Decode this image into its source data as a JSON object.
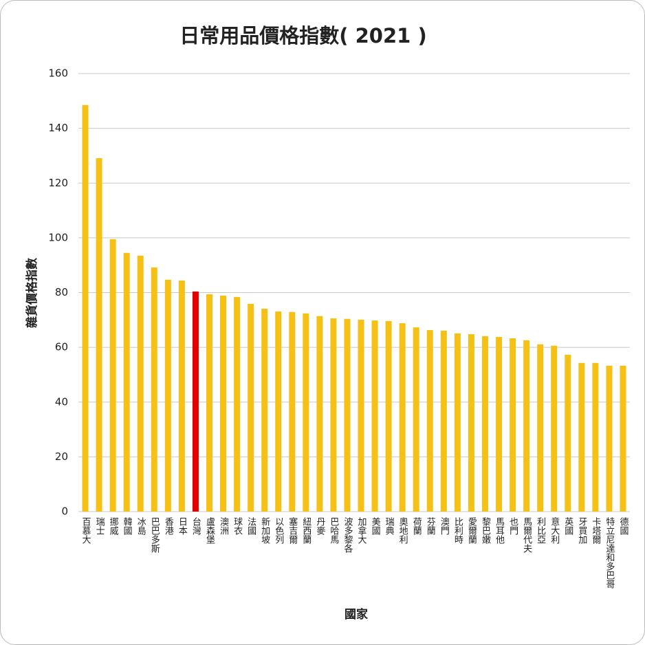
{
  "chart_data": {
    "type": "bar",
    "title": "日常用品價格指數( 2021 )",
    "x_label": "國家",
    "y_label": "雜貨價格指數",
    "categories": [
      "百慕大",
      "瑞士",
      "挪威",
      "韓國",
      "冰島",
      "巴巴多斯",
      "香港",
      "日本",
      "台灣",
      "盧森堡",
      "澳洲",
      "球衣",
      "法國",
      "新加坡",
      "以色列",
      "塞吉爾",
      "紐西蘭",
      "丹麥",
      "巴哈馬",
      "波多黎各",
      "加拿大",
      "美國",
      "瑞典",
      "奧地利",
      "荷蘭",
      "芬蘭",
      "澳門",
      "比利時",
      "愛爾蘭",
      "黎巴嫩",
      "馬耳他",
      "也門",
      "馬爾代夫",
      "利比亞",
      "意大利",
      "英國",
      "牙買加",
      "卡塔爾",
      "特立尼達和多巴哥",
      "德國"
    ],
    "values": [
      148.5,
      129.1,
      99.5,
      94.5,
      93.5,
      89.2,
      84.7,
      84.4,
      80.4,
      79.4,
      78.9,
      78.4,
      75.9,
      74.1,
      73.1,
      72.9,
      72.4,
      71.4,
      70.6,
      70.4,
      70.1,
      69.8,
      69.6,
      68.8,
      67.3,
      66.3,
      66.1,
      65.1,
      64.8,
      64.1,
      63.8,
      63.3,
      62.6,
      61.1,
      60.6,
      57.3,
      54.3,
      54.3,
      53.3,
      53.3
    ],
    "colors": [
      "#f5c116",
      "#f5c116",
      "#f5c116",
      "#f5c116",
      "#f5c116",
      "#f5c116",
      "#f5c116",
      "#f5c116",
      "#e00000",
      "#f5c116",
      "#f5c116",
      "#f5c116",
      "#f5c116",
      "#f5c116",
      "#f5c116",
      "#f5c116",
      "#f5c116",
      "#f5c116",
      "#f5c116",
      "#f5c116",
      "#f5c116",
      "#f5c116",
      "#f5c116",
      "#f5c116",
      "#f5c116",
      "#f5c116",
      "#f5c116",
      "#f5c116",
      "#f5c116",
      "#f5c116",
      "#f5c116",
      "#f5c116",
      "#f5c116",
      "#f5c116",
      "#f5c116",
      "#f5c116",
      "#f5c116",
      "#f5c116",
      "#f5c116",
      "#f5c116"
    ],
    "ylim": [
      0,
      160
    ],
    "yticks": [
      0,
      20,
      40,
      60,
      80,
      100,
      120,
      140,
      160
    ],
    "grid": true
  }
}
